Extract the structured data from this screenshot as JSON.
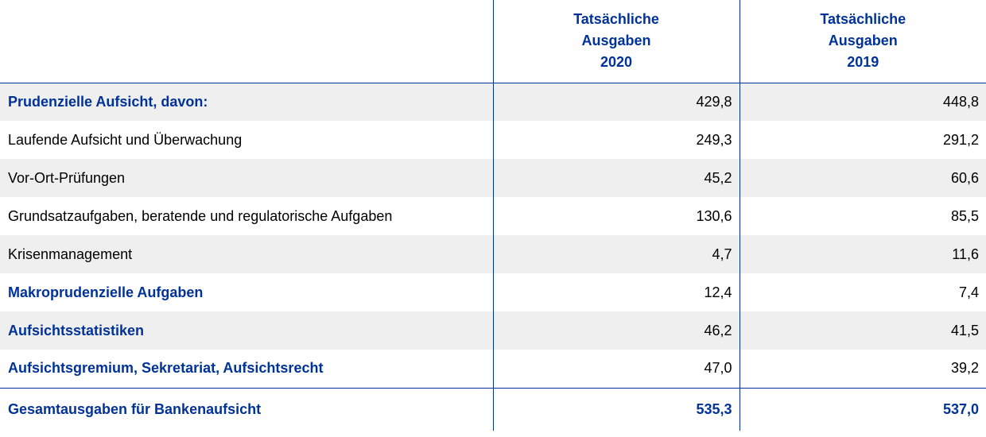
{
  "table": {
    "headers": [
      "",
      [
        "Tatsächliche",
        "Ausgaben",
        "2020"
      ],
      [
        "Tatsächliche",
        "Ausgaben",
        "2019"
      ]
    ],
    "rows": [
      {
        "label": "Prudenzielle Aufsicht, davon:",
        "v2020": "429,8",
        "v2019": "448,8",
        "kind": "section"
      },
      {
        "label": "Laufende Aufsicht und Überwachung",
        "v2020": "249,3",
        "v2019": "291,2",
        "kind": "item"
      },
      {
        "label": "Vor-Ort-Prüfungen",
        "v2020": "45,2",
        "v2019": "60,6",
        "kind": "item"
      },
      {
        "label": "Grundsatzaufgaben, beratende und regulatorische Aufgaben",
        "v2020": "130,6",
        "v2019": "85,5",
        "kind": "item"
      },
      {
        "label": "Krisenmanagement",
        "v2020": "4,7",
        "v2019": "11,6",
        "kind": "item"
      },
      {
        "label": "Makroprudenzielle Aufgaben",
        "v2020": "12,4",
        "v2019": "7,4",
        "kind": "section"
      },
      {
        "label": "Aufsichtsstatistiken",
        "v2020": "46,2",
        "v2019": "41,5",
        "kind": "section"
      },
      {
        "label": "Aufsichtsgremium, Sekretariat, Aufsichtsrecht",
        "v2020": "47,0",
        "v2019": "39,2",
        "kind": "section"
      }
    ],
    "total": {
      "label": "Gesamtausgaben für Bankenaufsicht",
      "v2020": "535,3",
      "v2019": "537,0"
    }
  },
  "colors": {
    "accent": "#003299",
    "row_shade": "#efefef"
  }
}
